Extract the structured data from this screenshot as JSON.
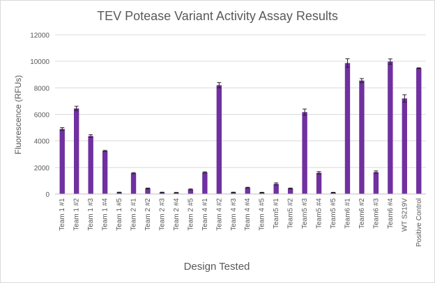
{
  "chart_data": {
    "type": "bar",
    "title": "TEV Potease Variant Activity Assay Results",
    "xlabel": "Design Tested",
    "ylabel": "Fluorescence (RFUs)",
    "ylim": [
      0,
      12000
    ],
    "y_ticks": [
      "0",
      "2000",
      "4000",
      "6000",
      "8000",
      "10000",
      "12000"
    ],
    "grid": true,
    "legend": "none",
    "bar_color": "#7030A0",
    "categories": [
      "Team 1 #1",
      "Team 1 #2",
      "Team 1 #3",
      "Team 1 #4",
      "Team 1 #5",
      "Team 2 #1",
      "Team 2 #2",
      "Team 2 #3",
      "Team 2 #4",
      "Team 2 #5",
      "Team 4 #1",
      "Team 4 #2",
      "Team 4 #3",
      "Team 4 #4",
      "Team 4 #5",
      "Team5 #1",
      "Team5 #2",
      "Team5 #3",
      "Team5 #4",
      "Team5 #5",
      "Team6 #1",
      "Team6 #2",
      "Team6 #3",
      "Team6 #4",
      "WT S219V",
      "Positive Control"
    ],
    "values": [
      4900,
      6450,
      4370,
      3250,
      120,
      1570,
      420,
      120,
      100,
      350,
      1630,
      8200,
      120,
      480,
      110,
      760,
      420,
      6170,
      1600,
      110,
      9870,
      8550,
      1650,
      9980,
      7200,
      9480
    ],
    "errors": [
      100,
      160,
      100,
      40,
      20,
      40,
      30,
      20,
      20,
      30,
      40,
      200,
      20,
      30,
      20,
      80,
      30,
      230,
      90,
      20,
      320,
      150,
      90,
      200,
      280,
      30
    ]
  }
}
